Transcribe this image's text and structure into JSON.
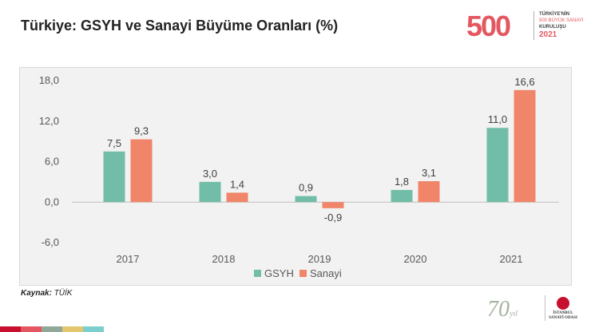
{
  "title": "Türkiye: GSYH ve Sanayi Büyüme Oranları (%)",
  "source": {
    "label": "Kaynak:",
    "value": "TÜİK"
  },
  "logos": {
    "logo500_number": "500",
    "logo500_line1": "TÜRKİYE'NİN",
    "logo500_line2": "500 BÜYÜK SANAYİ",
    "logo500_line3": "KURULUŞU",
    "logo500_year": "2021",
    "logo70_number": "70",
    "logo70_suffix": "yıl",
    "iso_line1": "İSTANBUL",
    "iso_line2": "SANAYİ ODASI"
  },
  "colors": {
    "gsyh": "#72bda8",
    "sanayi": "#f08569",
    "axis_text": "#595959",
    "brand_red": "#e45760"
  },
  "stripe_colors": [
    "#c8102e",
    "#e45760",
    "#8fa89a",
    "#e3c76e",
    "#7ccfcf"
  ],
  "chart_data": {
    "type": "bar",
    "categories": [
      "2017",
      "2018",
      "2019",
      "2020",
      "2021"
    ],
    "series": [
      {
        "name": "GSYH",
        "values": [
          7.5,
          3.0,
          0.9,
          1.8,
          11.0
        ],
        "labels": [
          "7,5",
          "3,0",
          "0,9",
          "1,8",
          "11,0"
        ]
      },
      {
        "name": "Sanayi",
        "values": [
          9.3,
          1.4,
          -0.9,
          3.1,
          16.6
        ],
        "labels": [
          "9,3",
          "1,4",
          "-0,9",
          "3,1",
          "16,6"
        ]
      }
    ],
    "yticks": [
      -6,
      0,
      6,
      12,
      18
    ],
    "ytick_labels": [
      "-6,0",
      "0,0",
      "6,0",
      "12,0",
      "18,0"
    ],
    "ylim": [
      -6,
      18
    ],
    "grid": false,
    "legend": "bottom-center"
  }
}
